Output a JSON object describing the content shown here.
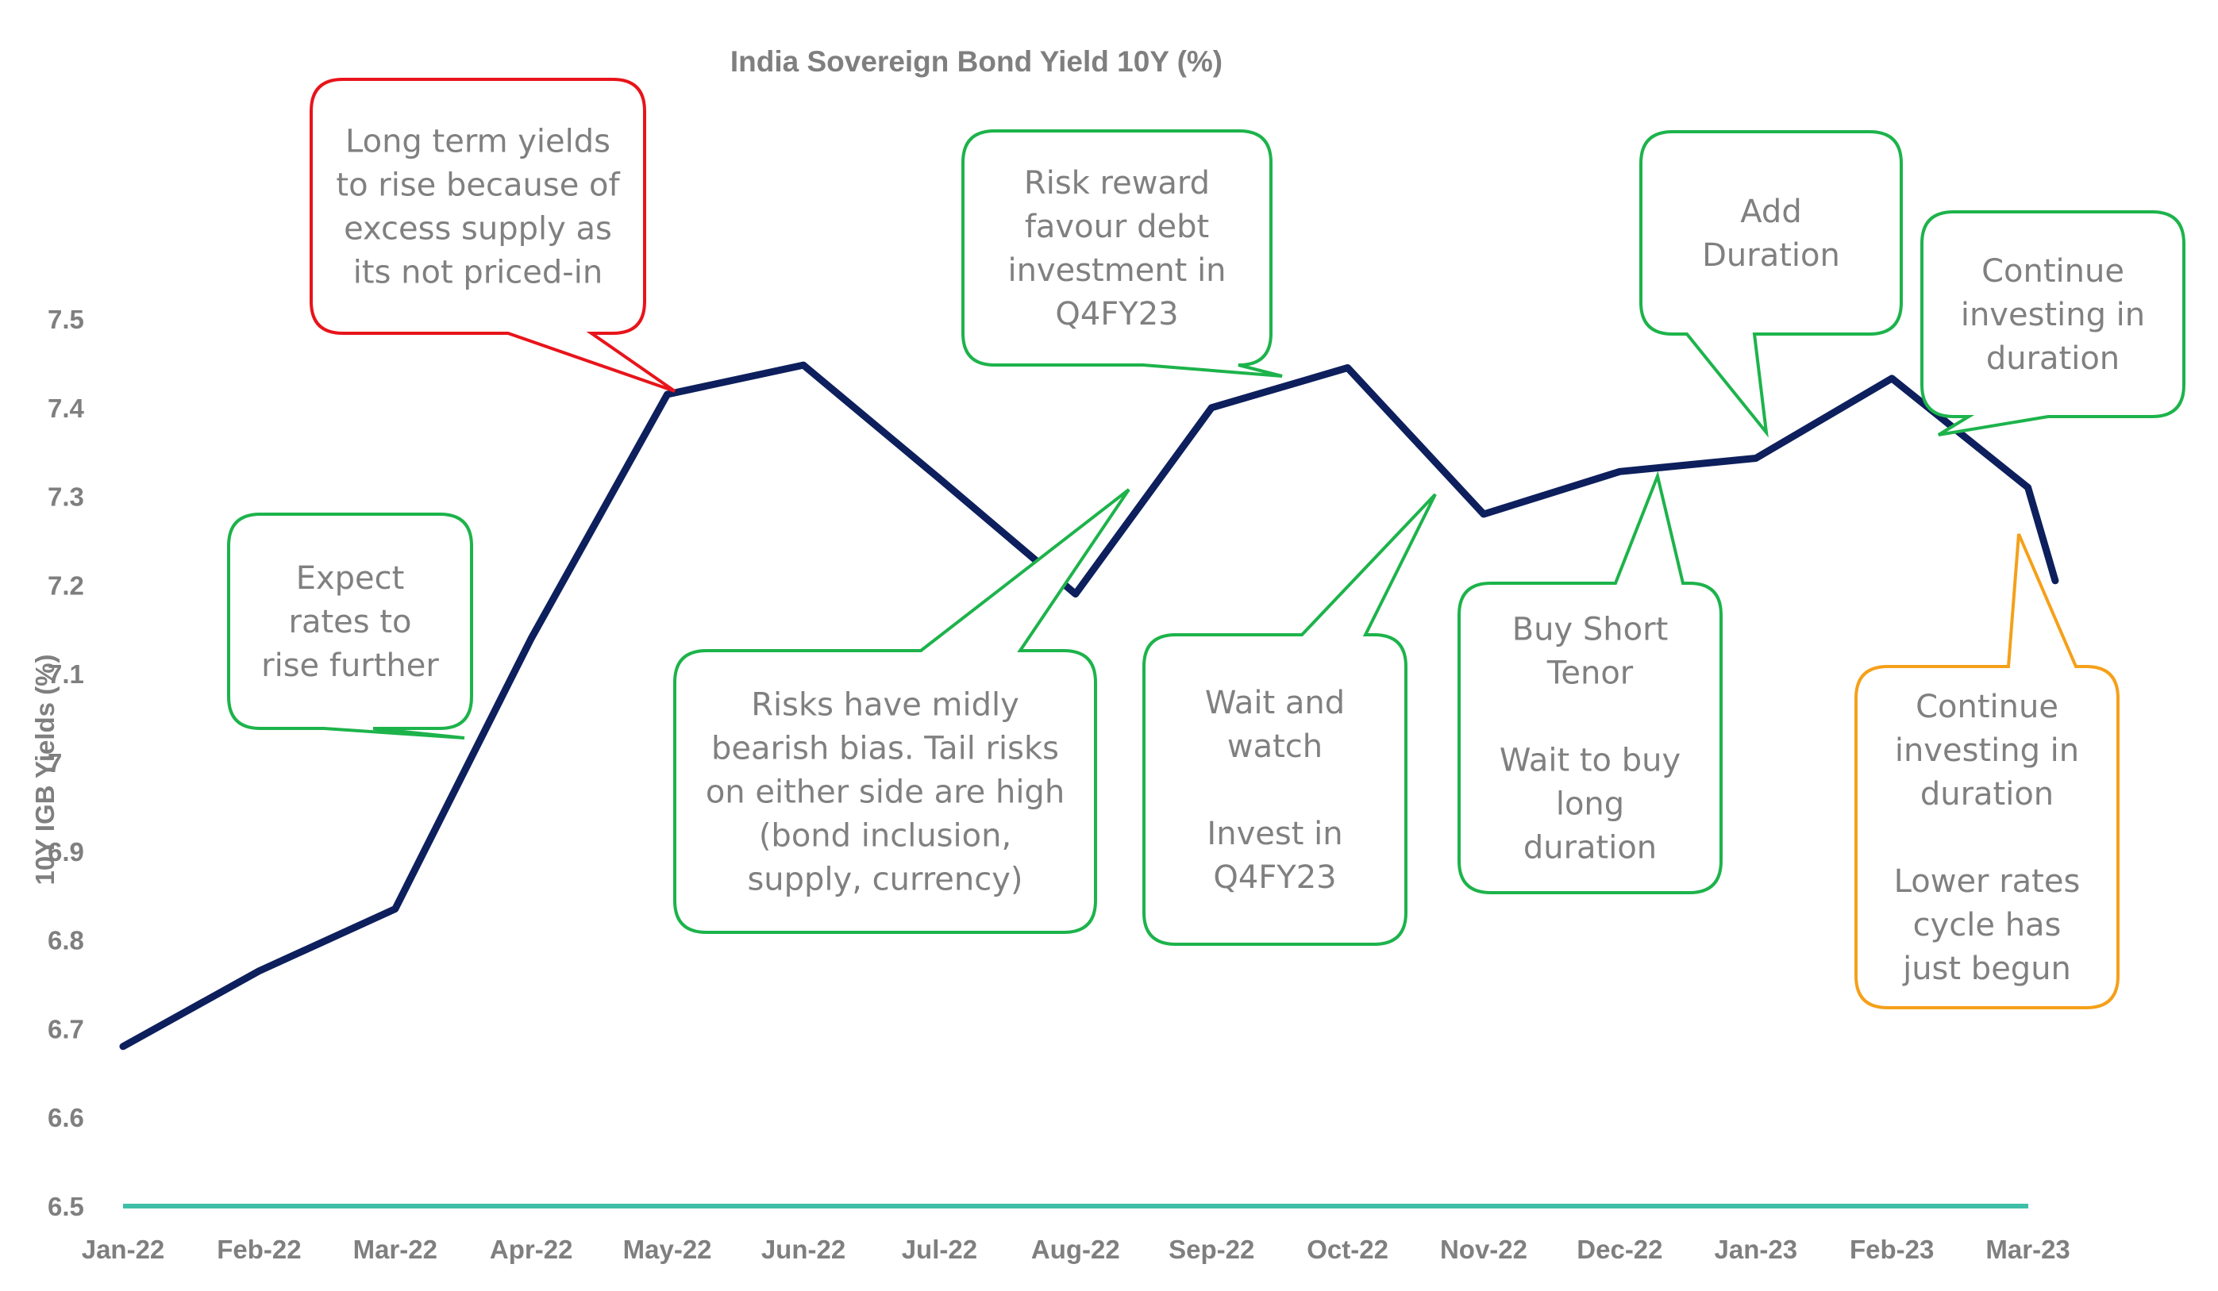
{
  "chart_data": {
    "type": "line",
    "title": "India Sovereign Bond Yield 10Y (%)",
    "ylabel": "10Y IGB Yields (%)",
    "xlabel": "",
    "ylim": [
      6.5,
      7.5
    ],
    "y_ticks": [
      "6.5",
      "6.6",
      "6.7",
      "6.8",
      "6.9",
      "7",
      "7.1",
      "7.2",
      "7.3",
      "7.4",
      "7.5"
    ],
    "categories": [
      "Jan-22",
      "Feb-22",
      "Mar-22",
      "Apr-22",
      "May-22",
      "Jun-22",
      "Jul-22",
      "Aug-22",
      "Sep-22",
      "Oct-22",
      "Nov-22",
      "Dec-22",
      "Jan-23",
      "Feb-23",
      "Mar-23"
    ],
    "series": [
      {
        "x": [
          0,
          1,
          2,
          3,
          4,
          5,
          6,
          7,
          8,
          9,
          10,
          11,
          12,
          13,
          14,
          14.2
        ],
        "values": [
          6.68,
          6.765,
          6.835,
          7.14,
          7.415,
          7.448,
          7.32,
          7.19,
          7.4,
          7.445,
          7.28,
          7.328,
          7.343,
          7.433,
          7.31,
          7.205
        ],
        "color": "#0d1f5c"
      }
    ],
    "baseline_color": "#3fbfa7",
    "grid": false,
    "legend": "none",
    "annotations": [
      {
        "lines": [
          "Long term yields",
          "to rise because of",
          "excess supply as",
          "its not priced-in"
        ],
        "color": "#e8141b",
        "points_to": "May-22"
      },
      {
        "lines": [
          "Expect",
          "rates to",
          "rise further"
        ],
        "color": "#1db34b",
        "points_to": "Apr-22"
      },
      {
        "lines": [
          "Risk reward",
          "favour debt",
          "investment in",
          "Q4FY23"
        ],
        "color": "#1db34b",
        "points_to": "Oct-22"
      },
      {
        "lines": [
          "Risks have midly",
          "bearish bias. Tail risks",
          "on either side are high",
          "(bond inclusion,",
          "supply, currency)"
        ],
        "color": "#1db34b",
        "points_to": "Aug-22"
      },
      {
        "lines": [
          "Wait and",
          "watch",
          "",
          "Invest in",
          "Q4FY23"
        ],
        "color": "#1db34b",
        "points_to": "Nov-22"
      },
      {
        "lines": [
          "Add",
          "Duration"
        ],
        "color": "#1db34b",
        "points_to": "Jan-23"
      },
      {
        "lines": [
          "Buy Short",
          "Tenor",
          "",
          "Wait to buy",
          "long",
          "duration"
        ],
        "color": "#1db34b",
        "points_to": "Dec-22"
      },
      {
        "lines": [
          "Continue",
          "investing in",
          "duration"
        ],
        "color": "#1db34b",
        "points_to": "Feb-23"
      },
      {
        "lines": [
          "Continue",
          "investing in",
          "duration",
          "",
          "Lower rates",
          "cycle has",
          "just begun"
        ],
        "color": "#f5a01a",
        "points_to": "Mar-23"
      }
    ]
  }
}
